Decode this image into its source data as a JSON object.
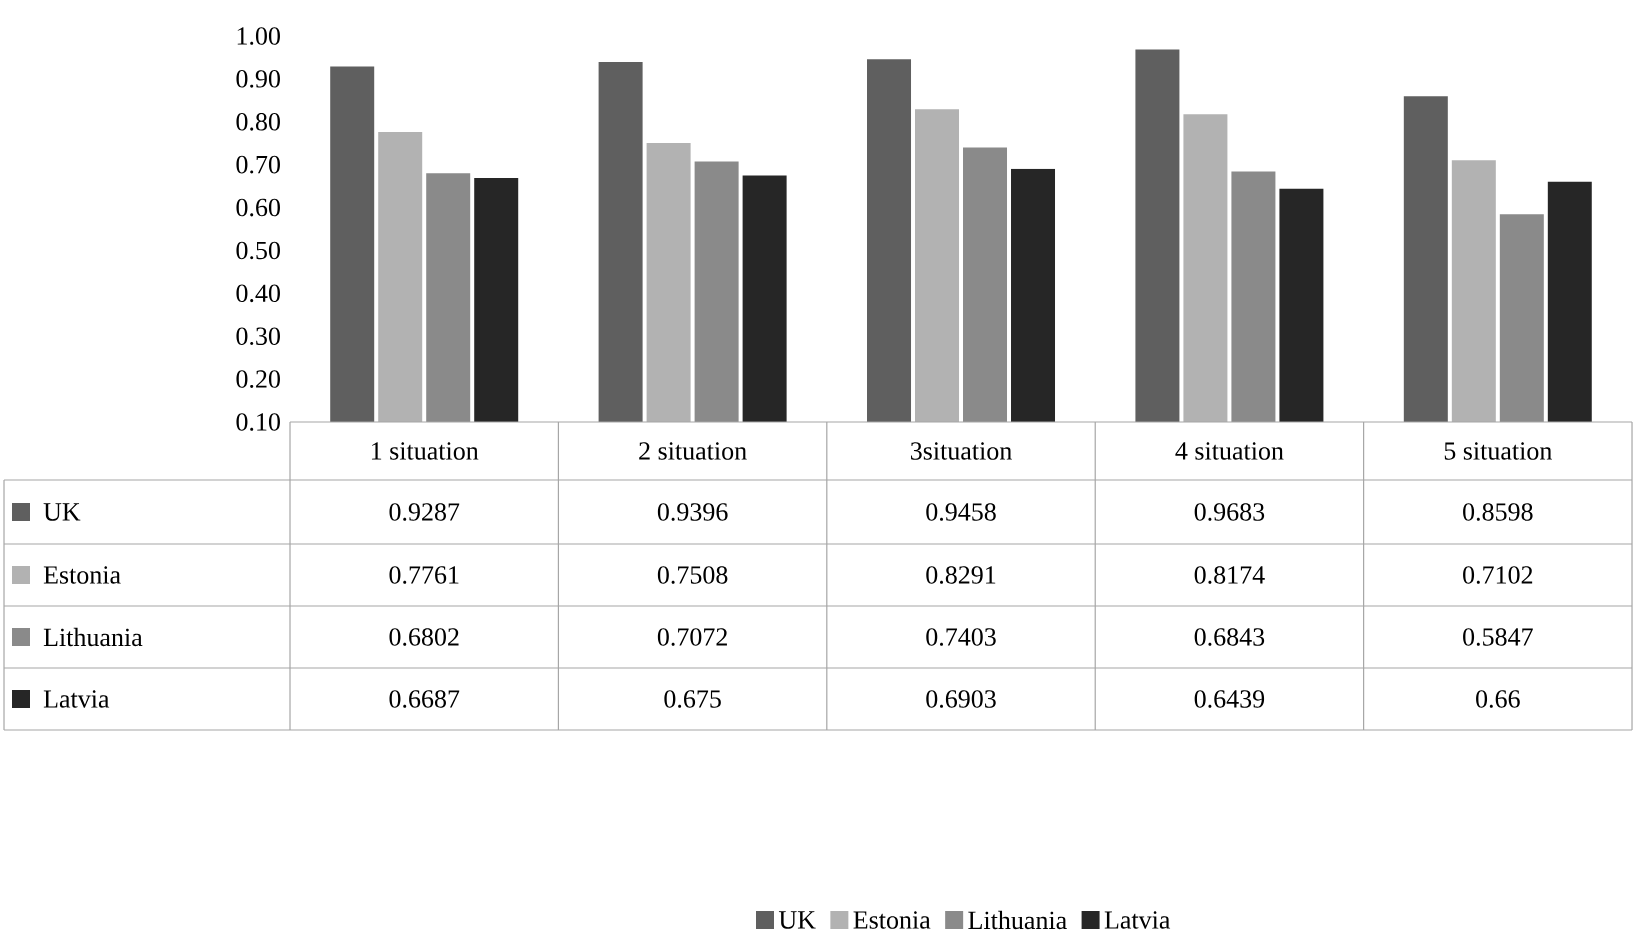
{
  "chart_data": {
    "type": "bar",
    "categories": [
      "1 situation",
      "2 situation",
      "3situation",
      "4 situation",
      "5 situation"
    ],
    "series": [
      {
        "name": "UK",
        "color": "#5f5f5f",
        "values": [
          0.9287,
          0.9396,
          0.9458,
          0.9683,
          0.8598
        ]
      },
      {
        "name": "Estonia",
        "color": "#b2b2b2",
        "values": [
          0.7761,
          0.7508,
          0.8291,
          0.8174,
          0.7102
        ]
      },
      {
        "name": "Lithuania",
        "color": "#8a8a8a",
        "values": [
          0.6802,
          0.7072,
          0.7403,
          0.6843,
          0.5847
        ]
      },
      {
        "name": "Latvia",
        "color": "#262626",
        "values": [
          0.6687,
          0.675,
          0.6903,
          0.6439,
          0.66
        ]
      }
    ],
    "ylim": [
      0.1,
      1.0
    ],
    "yticks": [
      {
        "value": 0.1,
        "label": "0.10"
      },
      {
        "value": 0.2,
        "label": "0.20"
      },
      {
        "value": 0.3,
        "label": "0.30"
      },
      {
        "value": 0.4,
        "label": "0.40"
      },
      {
        "value": 0.5,
        "label": "0.50"
      },
      {
        "value": 0.6,
        "label": "0.60"
      },
      {
        "value": 0.7,
        "label": "0.70"
      },
      {
        "value": 0.8,
        "label": "0.80"
      },
      {
        "value": 0.9,
        "label": "0.90"
      },
      {
        "value": 1.0,
        "label": "1.00"
      }
    ],
    "data_labels": true,
    "legend": "bottom",
    "grid": false
  }
}
